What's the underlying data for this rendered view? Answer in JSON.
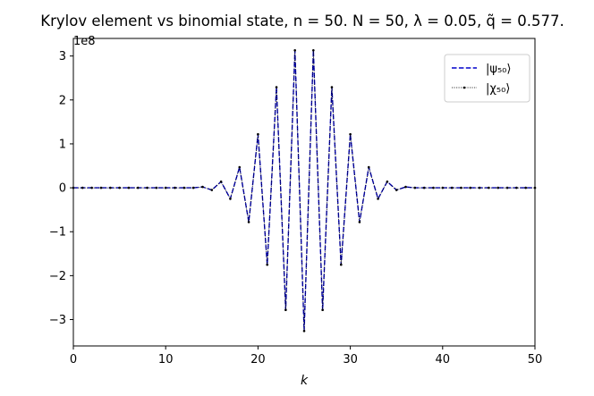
{
  "chart_data": {
    "type": "line",
    "title": "Krylov element vs binomial state, n = 50. N = 50, λ = 0.05, q̃ = 0.577.",
    "xlabel": "k",
    "ylabel": "",
    "y_offset_label": "1e8",
    "xlim": [
      0,
      50
    ],
    "ylim": [
      -3.6,
      3.4
    ],
    "x_ticks": [
      0,
      10,
      20,
      30,
      40,
      50
    ],
    "x_tick_labels": [
      "0",
      "10",
      "20",
      "30",
      "40",
      "50"
    ],
    "y_ticks": [
      -3,
      -2,
      -1,
      0,
      1,
      2,
      3
    ],
    "y_tick_labels": [
      "−3",
      "−2",
      "−1",
      "0",
      "1",
      "2",
      "3"
    ],
    "grid": false,
    "legend_position": "top-right",
    "x": [
      0,
      1,
      2,
      3,
      4,
      5,
      6,
      7,
      8,
      9,
      10,
      11,
      12,
      13,
      14,
      15,
      16,
      17,
      18,
      19,
      20,
      21,
      22,
      23,
      24,
      25,
      26,
      27,
      28,
      29,
      30,
      31,
      32,
      33,
      34,
      35,
      36,
      37,
      38,
      39,
      40,
      41,
      42,
      43,
      44,
      45,
      46,
      47,
      48,
      49,
      50
    ],
    "series": [
      {
        "name": "|ψ₅₀⟩",
        "color": "#0000cc",
        "style": "dashed",
        "values": [
          0,
          0,
          0,
          0,
          0,
          0,
          0,
          0,
          0,
          0,
          0,
          0,
          0,
          0,
          0.02,
          -0.05,
          0.14,
          -0.25,
          0.47,
          -0.78,
          1.22,
          -1.75,
          2.29,
          -2.78,
          3.13,
          -3.26,
          3.13,
          -2.78,
          2.29,
          -1.75,
          1.22,
          -0.78,
          0.47,
          -0.25,
          0.14,
          -0.05,
          0.02,
          0,
          0,
          0,
          0,
          0,
          0,
          0,
          0,
          0,
          0,
          0,
          0,
          0,
          0
        ]
      },
      {
        "name": "|χ₅₀⟩",
        "color": "#000000",
        "style": "dotted-markers",
        "values": [
          0,
          0,
          0,
          0,
          0,
          0,
          0,
          0,
          0,
          0,
          0,
          0,
          0,
          0,
          0.02,
          -0.05,
          0.14,
          -0.25,
          0.47,
          -0.78,
          1.22,
          -1.75,
          2.29,
          -2.78,
          3.13,
          -3.26,
          3.13,
          -2.78,
          2.29,
          -1.75,
          1.22,
          -0.78,
          0.47,
          -0.25,
          0.14,
          -0.05,
          0.02,
          0,
          0,
          0,
          0,
          0,
          0,
          0,
          0,
          0,
          0,
          0,
          0,
          0,
          0
        ]
      }
    ]
  }
}
